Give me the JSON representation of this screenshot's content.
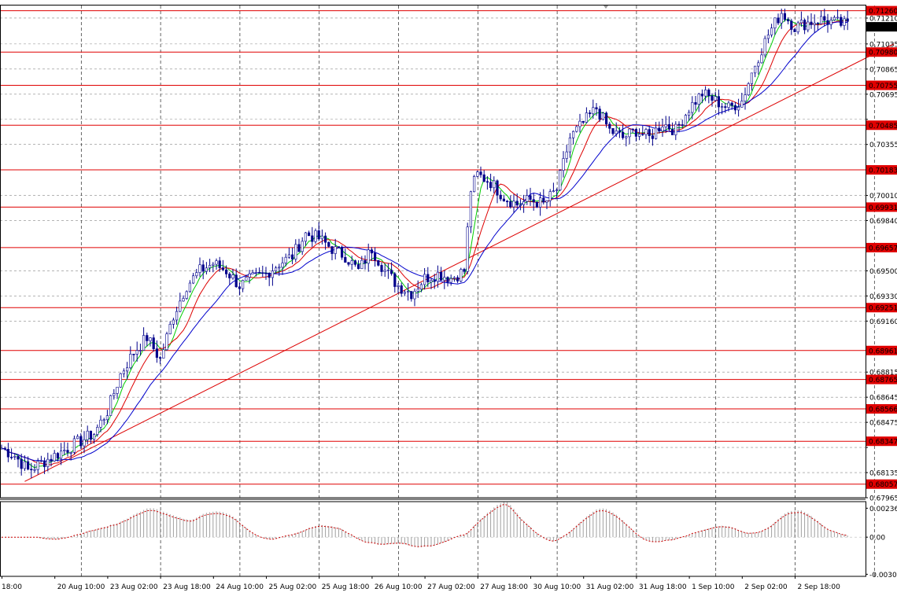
{
  "chart_data": {
    "type": "candlestick",
    "price_axis": {
      "range": [
        0.67965,
        0.71295
      ],
      "tick_labels": [
        "0.71210",
        "0.71035",
        "0.70865",
        "0.70695",
        "0.70525",
        "0.70355",
        "0.70010",
        "0.69840",
        "0.69500",
        "0.69330",
        "0.69160",
        "0.68815",
        "0.68645",
        "0.68475",
        "0.68305",
        "0.68135",
        "0.67965"
      ],
      "tick_values": [
        0.7121,
        0.71035,
        0.70865,
        0.70695,
        0.70525,
        0.70355,
        0.7001,
        0.6984,
        0.695,
        0.6933,
        0.6916,
        0.68815,
        0.68645,
        0.68475,
        0.68305,
        0.68135,
        0.67965
      ]
    },
    "current_price": {
      "label": "0.71151",
      "value": 0.71151
    },
    "levels": [
      {
        "label": "0.71260",
        "value": 0.7126
      },
      {
        "label": "0.70980",
        "value": 0.7098
      },
      {
        "label": "0.70755",
        "value": 0.70755
      },
      {
        "label": "0.70485",
        "value": 0.70485
      },
      {
        "label": "0.70183",
        "value": 0.70183
      },
      {
        "label": "0.69931",
        "value": 0.69931
      },
      {
        "label": "0.69657",
        "value": 0.69657
      },
      {
        "label": "0.69251",
        "value": 0.69251
      },
      {
        "label": "0.68961",
        "value": 0.68961
      },
      {
        "label": "0.68765",
        "value": 0.68765
      },
      {
        "label": "0.68566",
        "value": 0.68566
      },
      {
        "label": "0.68347",
        "value": 0.68347
      },
      {
        "label": "0.68057",
        "value": 0.68057
      }
    ],
    "time_axis": {
      "labels": [
        "18:00",
        "20 Aug 10:00",
        "23 Aug 02:00",
        "23 Aug 18:00",
        "24 Aug 10:00",
        "25 Aug 02:00",
        "25 Aug 18:00",
        "26 Aug 10:00",
        "27 Aug 02:00",
        "27 Aug 18:00",
        "30 Aug 10:00",
        "31 Aug 02:00",
        "31 Aug 18:00",
        "1 Sep 10:00",
        "2 Sep 02:00",
        "2 Sep 18:00"
      ],
      "bar_index": [
        0,
        16,
        32,
        48,
        64,
        80,
        96,
        112,
        128,
        144,
        160,
        176,
        192,
        208,
        224,
        240
      ]
    },
    "price_path": {
      "bar_index": [
        0,
        4,
        8,
        12,
        16,
        20,
        24,
        28,
        32,
        36,
        40,
        44,
        48,
        52,
        56,
        60,
        64,
        68,
        72,
        76,
        80,
        84,
        88,
        92,
        96,
        100,
        104,
        108,
        112,
        116,
        120,
        124,
        128,
        132,
        136,
        140,
        142,
        144,
        148,
        152,
        156,
        160,
        164,
        168,
        172,
        176,
        180,
        184,
        188,
        192,
        196,
        200,
        204,
        208,
        212,
        216,
        220,
        224,
        228,
        232,
        236,
        240,
        244,
        248,
        252,
        256
      ],
      "close": [
        0.683,
        0.6825,
        0.6815,
        0.682,
        0.6825,
        0.683,
        0.6835,
        0.684,
        0.6855,
        0.688,
        0.6895,
        0.6905,
        0.689,
        0.692,
        0.694,
        0.695,
        0.6955,
        0.695,
        0.694,
        0.6945,
        0.6948,
        0.6955,
        0.696,
        0.6975,
        0.6972,
        0.6965,
        0.696,
        0.695,
        0.6965,
        0.695,
        0.694,
        0.6935,
        0.6945,
        0.6948,
        0.6945,
        0.695,
        0.7005,
        0.7015,
        0.701,
        0.7,
        0.6995,
        0.6998,
        0.6995,
        0.7005,
        0.704,
        0.705,
        0.706,
        0.7045,
        0.704,
        0.7045,
        0.704,
        0.705,
        0.7045,
        0.706,
        0.707,
        0.7065,
        0.706,
        0.7065,
        0.709,
        0.711,
        0.7125,
        0.7115,
        0.7118,
        0.712,
        0.7118,
        0.7116
      ]
    },
    "moving_averages": [
      {
        "color": "#00cc00",
        "period": 5
      },
      {
        "color": "#dd0000",
        "period": 10
      },
      {
        "color": "#0000cc",
        "period": 20
      }
    ],
    "trendline": {
      "color": "#dd0000",
      "from": {
        "bar": 7,
        "price": 0.68075
      },
      "to": {
        "bar": 270,
        "price": 0.71035
      }
    },
    "vertical_grid_bars": [
      24,
      48,
      72,
      96,
      120,
      144,
      168,
      192,
      216,
      240,
      264
    ],
    "oscillator": {
      "tick_labels": [
        "0.002364",
        "0.00",
        "-0.00303"
      ],
      "tick_values": [
        0.002364,
        0,
        -0.00303
      ],
      "range": [
        -0.0032,
        0.0029
      ]
    }
  },
  "colors": {
    "candle": "#00008b",
    "level": "#e00000",
    "grid": "#888888",
    "osc_bar": "#a0a0a0",
    "osc_signal": "#cc0000"
  }
}
